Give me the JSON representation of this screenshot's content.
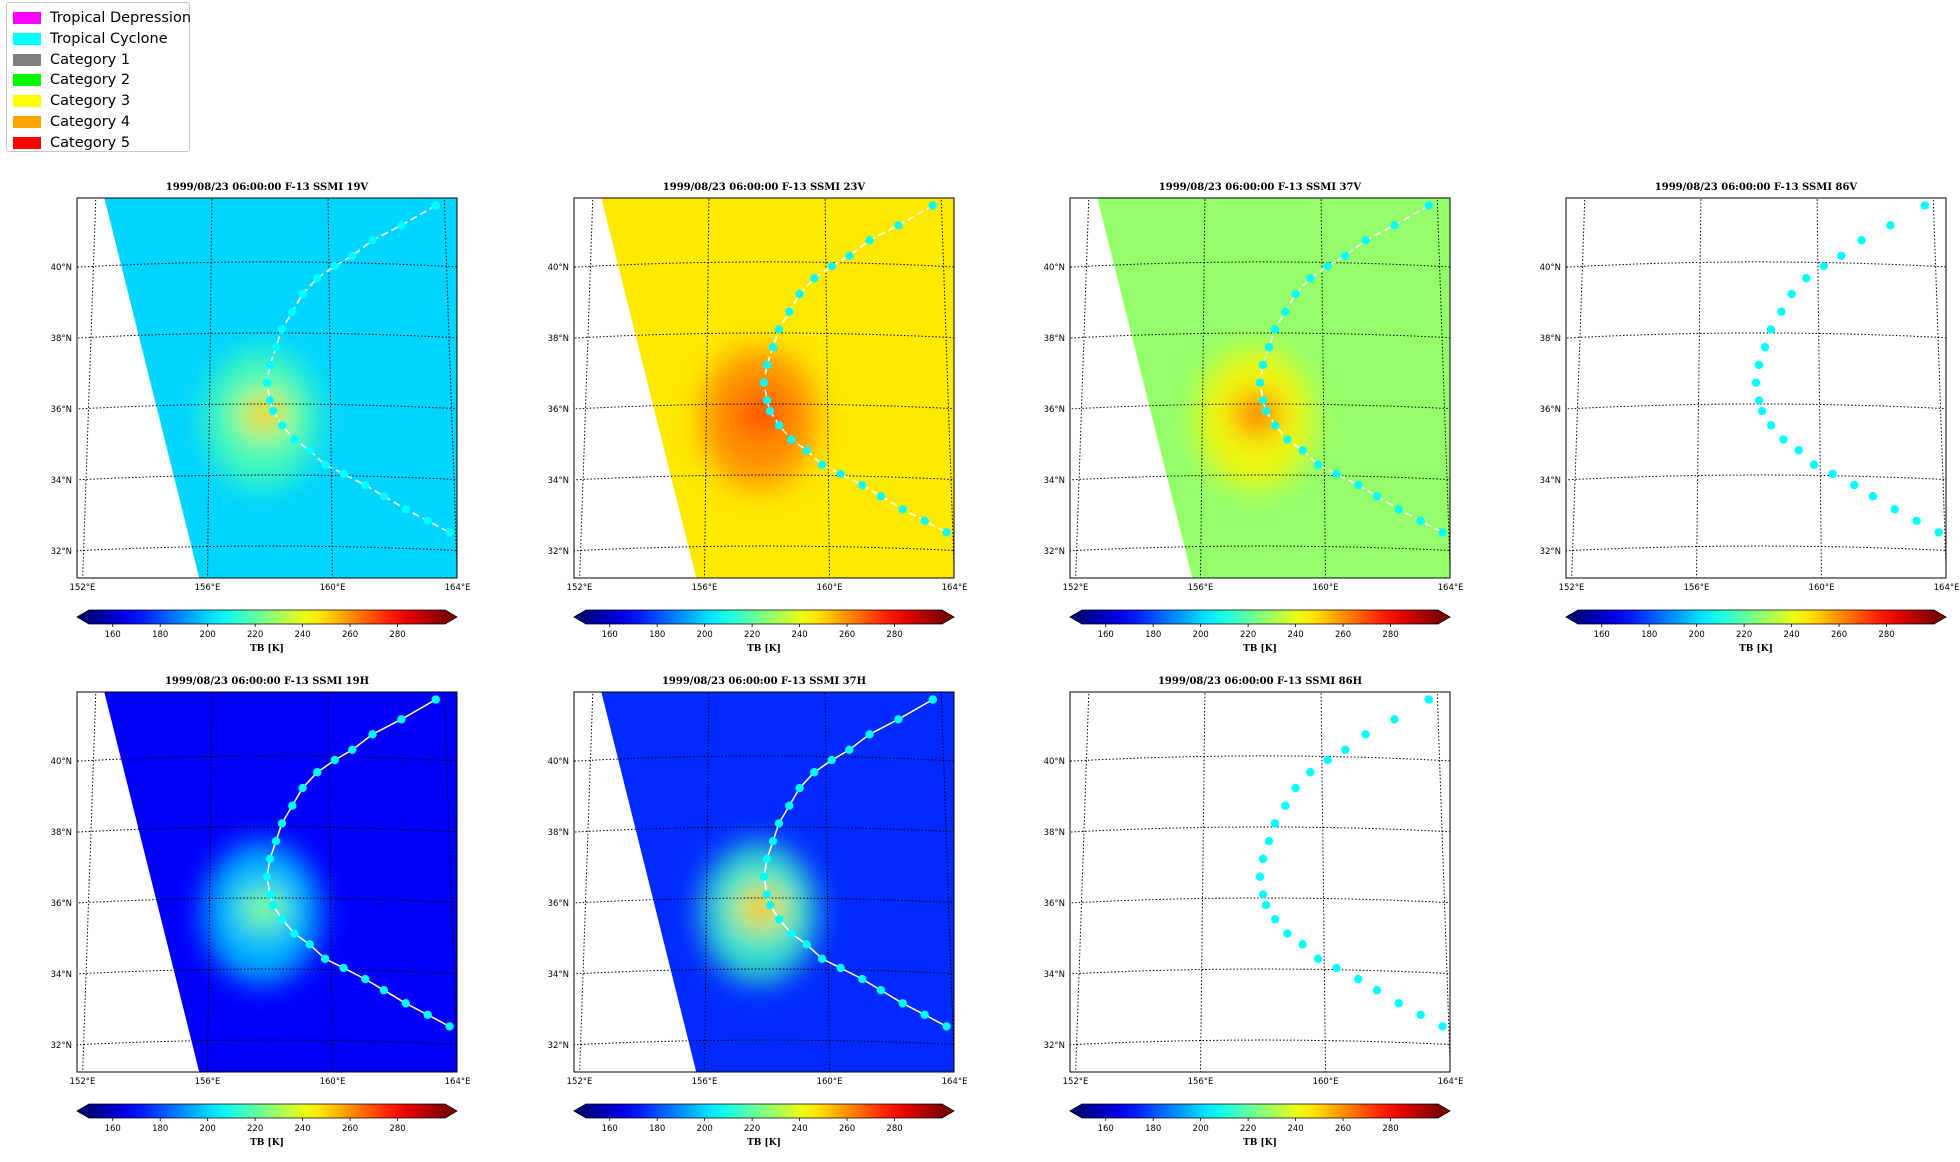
{
  "legend": [
    {
      "label": "Tropical Depression",
      "color": "#ff00ff"
    },
    {
      "label": "Tropical Cyclone",
      "color": "#00ffff"
    },
    {
      "label": "Category 1",
      "color": "#808080"
    },
    {
      "label": "Category 2",
      "color": "#00ff00"
    },
    {
      "label": "Category 3",
      "color": "#ffff00"
    },
    {
      "label": "Category 4",
      "color": "#ffa500"
    },
    {
      "label": "Category 5",
      "color": "#ff0000"
    }
  ],
  "colorbar": {
    "label": "TB [K]",
    "ticks": [
      160,
      180,
      200,
      220,
      240,
      260,
      280
    ],
    "range": [
      150,
      300
    ],
    "colormap": "jet",
    "extend": "both"
  },
  "map_axes": {
    "lon_ticks": [
      "152°E",
      "156°E",
      "160°E",
      "164°E"
    ],
    "lat_ticks": [
      "32°N",
      "34°N",
      "36°N",
      "38°N",
      "40°N"
    ]
  },
  "track_color": "#00ffff",
  "chart_data": [
    {
      "type": "heatmap",
      "title": "1999/08/23 06:00:00  F-13 SSMI 19V",
      "background_tb": 200,
      "storm_peak_tb": 262,
      "storm_halo_tb": 218,
      "track_line": "dashed",
      "data_present": true
    },
    {
      "type": "heatmap",
      "title": "1999/08/23 06:00:00  F-13 SSMI 23V",
      "background_tb": 247,
      "storm_peak_tb": 272,
      "storm_halo_tb": 262,
      "track_line": "dashed",
      "data_present": true
    },
    {
      "type": "heatmap",
      "title": "1999/08/23 06:00:00  F-13 SSMI 37V",
      "background_tb": 228,
      "storm_peak_tb": 270,
      "storm_halo_tb": 245,
      "track_line": "dashed",
      "data_present": true
    },
    {
      "type": "heatmap",
      "title": "1999/08/23 06:00:00  F-13 SSMI 86V",
      "track_line": "none",
      "data_present": false
    },
    {
      "type": "heatmap",
      "title": "1999/08/23 06:00:00  F-13 SSMI 19H",
      "background_tb": 168,
      "storm_peak_tb": 232,
      "storm_halo_tb": 200,
      "track_line": "solid",
      "data_present": true
    },
    {
      "type": "heatmap",
      "title": "1999/08/23 06:00:00  F-13 SSMI 37H",
      "background_tb": 175,
      "storm_peak_tb": 268,
      "storm_halo_tb": 215,
      "track_line": "solid",
      "data_present": true
    },
    {
      "type": "heatmap",
      "title": "1999/08/23 06:00:00  F-13 SSMI 86H",
      "track_line": "none",
      "data_present": false
    }
  ],
  "storm_track": [
    [
      163.7,
      41.7
    ],
    [
      162.5,
      41.1
    ],
    [
      161.5,
      40.65
    ],
    [
      160.8,
      40.2
    ],
    [
      160.2,
      39.9
    ],
    [
      159.6,
      39.55
    ],
    [
      159.1,
      39.1
    ],
    [
      158.75,
      38.6
    ],
    [
      158.4,
      38.1
    ],
    [
      158.2,
      37.6
    ],
    [
      158.0,
      37.1
    ],
    [
      157.9,
      36.6
    ],
    [
      158.0,
      36.1
    ],
    [
      158.1,
      35.8
    ],
    [
      158.4,
      35.4
    ],
    [
      158.8,
      35.0
    ],
    [
      159.3,
      34.7
    ],
    [
      159.8,
      34.3
    ],
    [
      160.4,
      34.05
    ],
    [
      161.1,
      33.75
    ],
    [
      161.7,
      33.45
    ],
    [
      162.4,
      33.1
    ],
    [
      163.1,
      32.8
    ],
    [
      163.8,
      32.5
    ]
  ],
  "storm_center": [
    157.8,
    35.7
  ],
  "swath_edge": [
    [
      152.4,
      41.6
    ],
    [
      155.8,
      30.9
    ]
  ]
}
